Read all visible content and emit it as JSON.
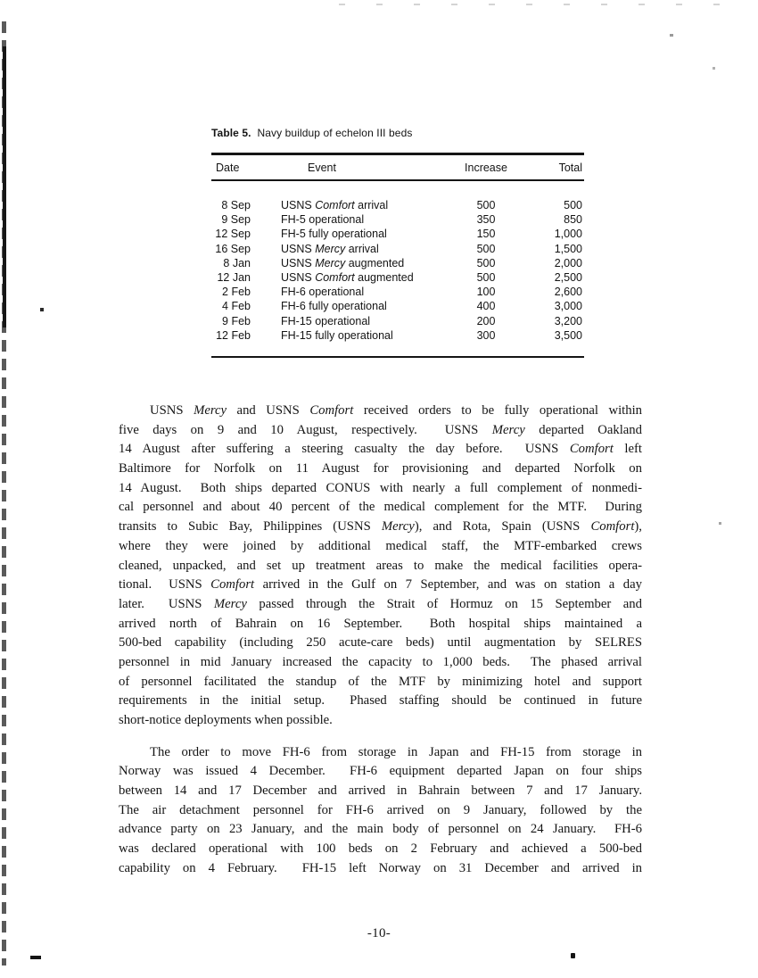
{
  "colors": {
    "text": "#141414",
    "rule": "#151515",
    "background": "#ffffff"
  },
  "table": {
    "title_prefix": "Table 5.",
    "title_rest": "Navy buildup of echelon III beds",
    "columns": [
      "Date",
      "Event",
      "Increase",
      "Total"
    ],
    "rows": [
      [
        "8 Sep",
        "USNS *Comfort* arrival",
        "500",
        "500"
      ],
      [
        "9 Sep",
        "FH-5 operational",
        "350",
        "850"
      ],
      [
        "12 Sep",
        "FH-5 fully operational",
        "150",
        "1,000"
      ],
      [
        "16 Sep",
        "USNS *Mercy* arrival",
        "500",
        "1,500"
      ],
      [
        "8 Jan",
        "USNS *Mercy* augmented",
        "500",
        "2,000"
      ],
      [
        "12 Jan",
        "USNS *Comfort* augmented",
        "500",
        "2,500"
      ],
      [
        "2 Feb",
        "FH-6 operational",
        "100",
        "2,600"
      ],
      [
        "4 Feb",
        "FH-6 fully operational",
        "400",
        "3,000"
      ],
      [
        "9 Feb",
        "FH-15 operational",
        "200",
        "3,200"
      ],
      [
        "12 Feb",
        "FH-15 fully operational",
        "300",
        "3,500"
      ]
    ]
  },
  "paragraphs": [
    {
      "justify_last_line": false,
      "lines": [
        "USNS *Mercy* and USNS *Comfort* received orders to be fully operational within",
        "five days on 9 and 10 August, respectively.  USNS *Mercy* departed Oakland",
        "14 August after suffering a steering casualty the day before.  USNS *Comfort* left",
        "Baltimore for Norfolk on 11 August for provisioning and departed Norfolk on",
        "14 August.  Both ships departed CONUS with nearly a full complement of nonmedi-",
        "cal personnel and about 40 percent of the medical complement for the MTF.  During",
        "transits to Subic Bay, Philippines (USNS *Mercy*), and Rota, Spain (USNS *Comfort*),",
        "where they were joined by additional medical staff, the MTF-embarked crews",
        "cleaned, unpacked, and set up treatment areas to make the medical facilities opera-",
        "tional.  USNS *Comfort* arrived in the Gulf on 7 September, and was on station a day",
        "later.  USNS *Mercy* passed through the Strait of Hormuz on 15 September and",
        "arrived north of Bahrain on 16 September.  Both hospital ships maintained a",
        "500-bed capability (including 250 acute-care beds) until augmentation by SELRES",
        "personnel in mid January increased the capacity to 1,000 beds.  The phased arrival",
        "of personnel facilitated the standup of the MTF by minimizing hotel and support",
        "requirements in the initial setup.  Phased staffing should be continued in future",
        "short-notice deployments when possible."
      ]
    },
    {
      "justify_last_line": true,
      "lines": [
        "The order to move FH-6 from storage in Japan and FH-15 from storage in",
        "Norway was issued 4 December.  FH-6 equipment departed Japan on four ships",
        "between 14 and 17 December and arrived in Bahrain between 7 and 17 January.",
        "The air detachment personnel for FH-6 arrived on 9 January, followed by the",
        "advance party on 23 January, and the main body of personnel on 24 January.  FH-6",
        "was declared operational with 100 beds on 2 February and achieved a 500-bed",
        "capability on 4 February.  FH-15 left Norway on 31 December and arrived in"
      ]
    }
  ],
  "footer": {
    "page_number": "-10-"
  }
}
